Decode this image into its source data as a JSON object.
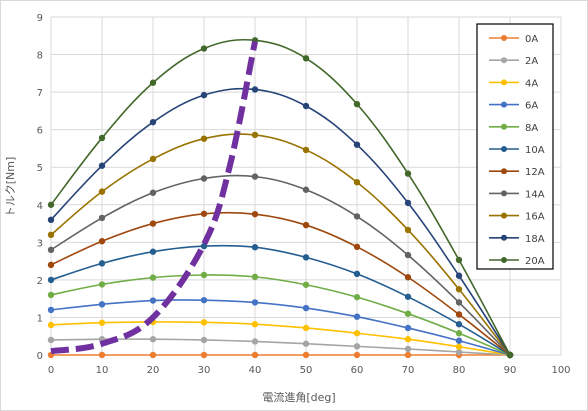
{
  "chart_data": {
    "type": "line",
    "title": "",
    "xlabel": "電流進角[deg]",
    "ylabel": "トルク[Nm]",
    "xlim": [
      0,
      100
    ],
    "ylim": [
      0,
      9
    ],
    "xticks": [
      0,
      10,
      20,
      30,
      40,
      50,
      60,
      70,
      80,
      90,
      100
    ],
    "yticks": [
      0,
      1,
      2,
      3,
      4,
      5,
      6,
      7,
      8,
      9
    ],
    "x": [
      0,
      10,
      20,
      30,
      40,
      50,
      60,
      70,
      80,
      90
    ],
    "grid": true,
    "legend_position": "right",
    "series": [
      {
        "name": "0A",
        "color": "#ED7D31",
        "values": [
          0,
          0,
          0,
          0,
          0,
          0,
          0,
          0,
          0,
          0
        ]
      },
      {
        "name": "2A",
        "color": "#A5A5A5",
        "values": [
          0.4,
          0.42,
          0.42,
          0.4,
          0.36,
          0.3,
          0.23,
          0.16,
          0.08,
          0
        ]
      },
      {
        "name": "4A",
        "color": "#FFC000",
        "values": [
          0.8,
          0.86,
          0.88,
          0.87,
          0.82,
          0.72,
          0.58,
          0.42,
          0.22,
          0
        ]
      },
      {
        "name": "6A",
        "color": "#4472C4",
        "values": [
          1.2,
          1.35,
          1.45,
          1.46,
          1.4,
          1.25,
          1.02,
          0.72,
          0.38,
          0
        ]
      },
      {
        "name": "8A",
        "color": "#70AD47",
        "values": [
          1.6,
          1.88,
          2.06,
          2.13,
          2.08,
          1.87,
          1.54,
          1.1,
          0.58,
          0
        ]
      },
      {
        "name": "10A",
        "color": "#255E91",
        "values": [
          2.0,
          2.44,
          2.75,
          2.9,
          2.87,
          2.6,
          2.16,
          1.55,
          0.82,
          0
        ]
      },
      {
        "name": "12A",
        "color": "#9E480E",
        "values": [
          2.4,
          3.03,
          3.5,
          3.76,
          3.75,
          3.46,
          2.88,
          2.07,
          1.08,
          0
        ]
      },
      {
        "name": "14A",
        "color": "#636363",
        "values": [
          2.8,
          3.65,
          4.32,
          4.7,
          4.75,
          4.4,
          3.69,
          2.66,
          1.4,
          0
        ]
      },
      {
        "name": "16A",
        "color": "#997300",
        "values": [
          3.2,
          4.35,
          5.22,
          5.76,
          5.86,
          5.46,
          4.6,
          3.33,
          1.75,
          0
        ]
      },
      {
        "name": "18A",
        "color": "#264478",
        "values": [
          3.6,
          5.04,
          6.2,
          6.92,
          7.07,
          6.63,
          5.6,
          4.05,
          2.11,
          0
        ]
      },
      {
        "name": "20A",
        "color": "#43682B",
        "values": [
          4.0,
          5.78,
          7.25,
          8.16,
          8.38,
          7.9,
          6.68,
          4.83,
          2.53,
          0
        ]
      }
    ],
    "annotation": {
      "type": "dashed-curve",
      "color": "#7030A0",
      "x": [
        0,
        10,
        20,
        30,
        35,
        40
      ],
      "y": [
        0.1,
        0.3,
        1.0,
        2.95,
        5.0,
        8.35
      ]
    }
  }
}
